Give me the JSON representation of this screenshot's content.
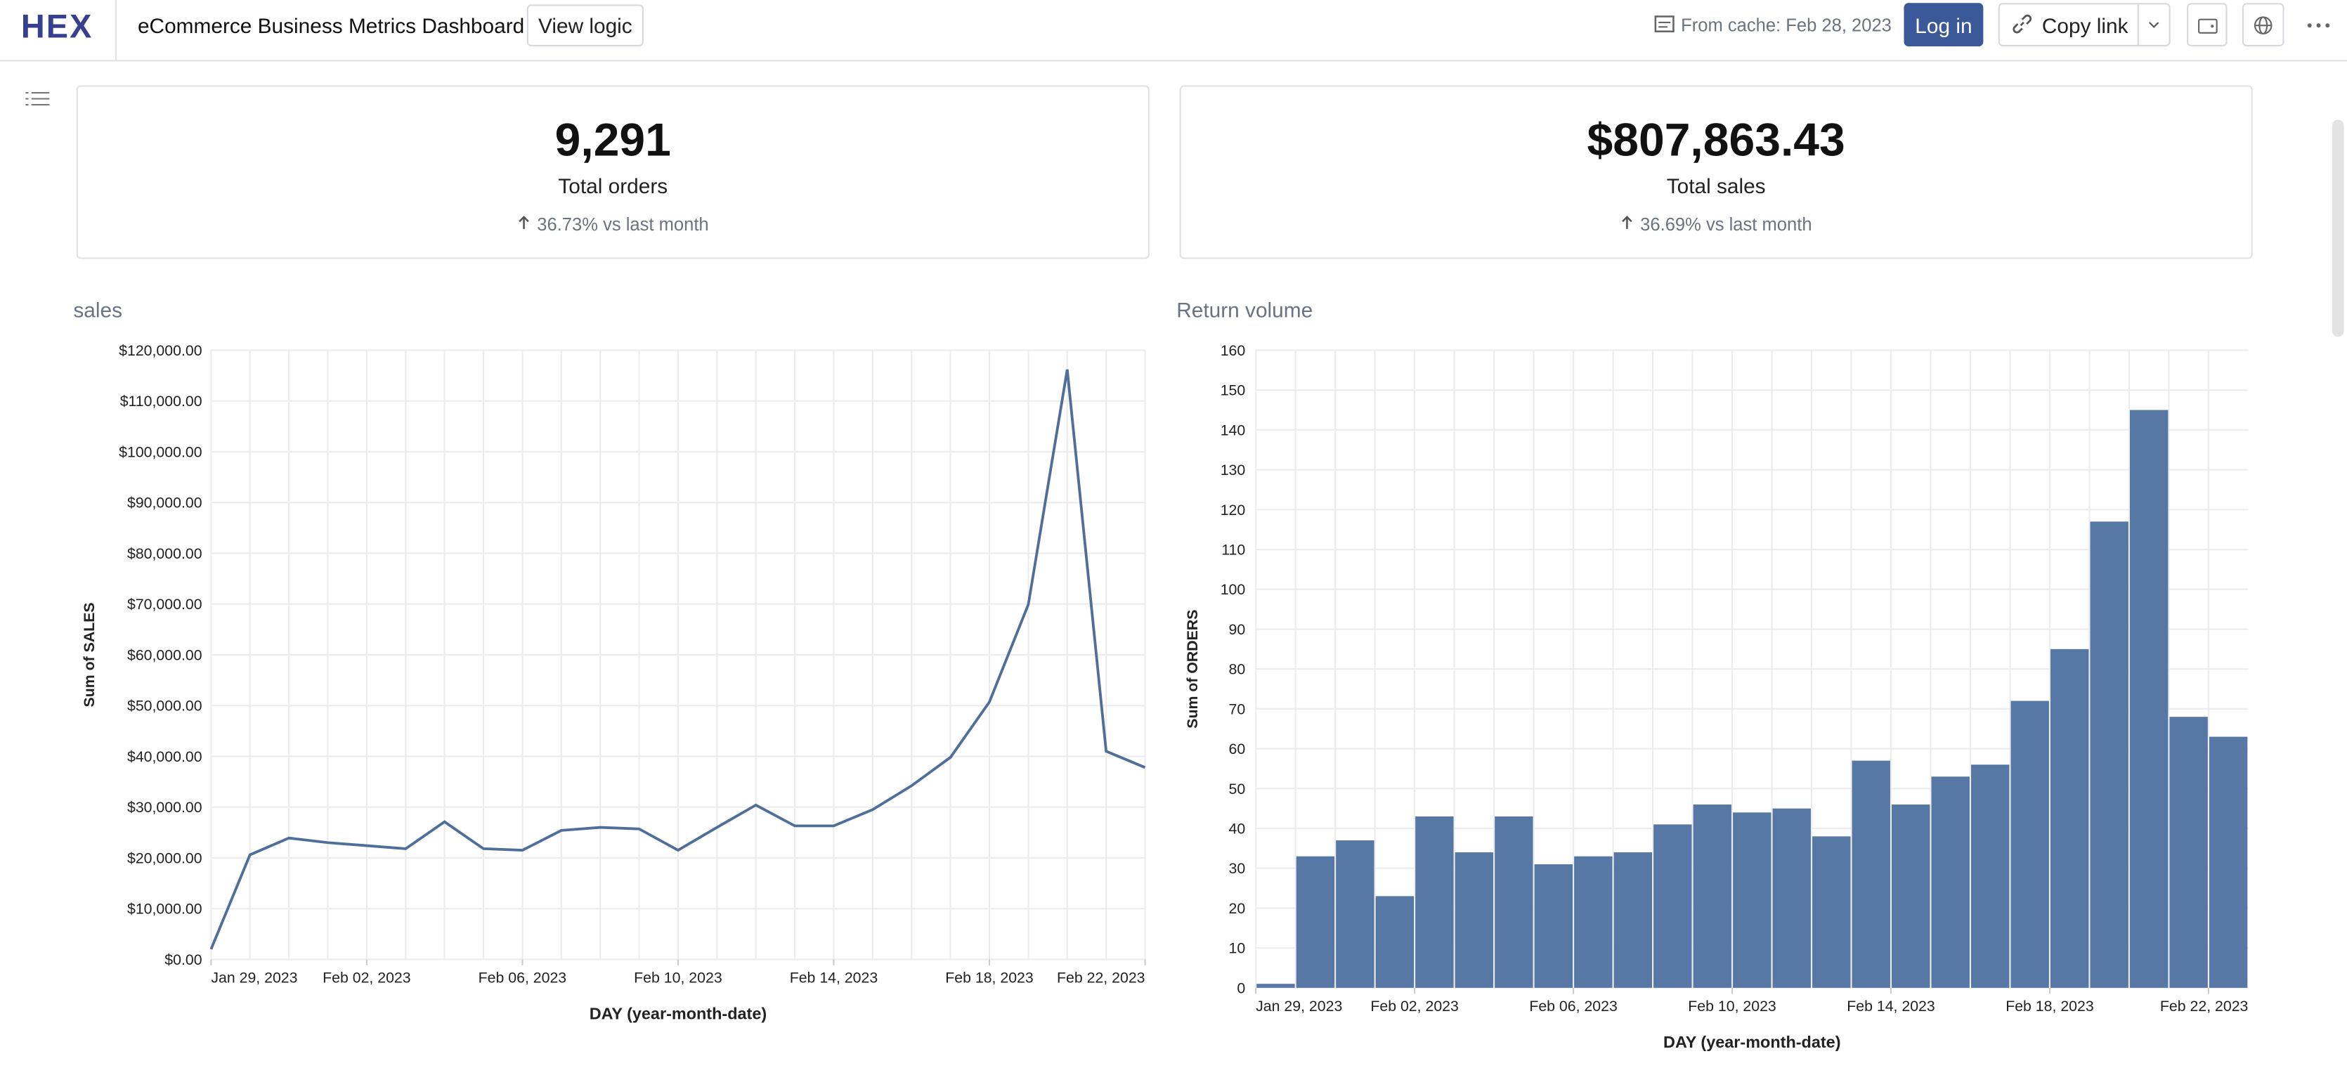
{
  "header": {
    "logo": "HEX",
    "title": "eCommerce Business Metrics Dashboard",
    "view_logic": "View logic",
    "cache": "From cache: Feb 28, 2023",
    "login": "Log in",
    "copy_link": "Copy link"
  },
  "metrics": [
    {
      "value": "9,291",
      "label": "Total orders",
      "change": "36.73% vs last month"
    },
    {
      "value": "$807,863.43",
      "label": "Total sales",
      "change": "36.69% vs last month"
    }
  ],
  "chart_data": [
    {
      "type": "line",
      "title": "sales",
      "x_label": "DAY (year-month-date)",
      "y_label": "Sum of SALES",
      "color": "#4f6f9a",
      "grid": true,
      "x": [
        "2023-01-29",
        "2023-01-30",
        "2023-01-31",
        "2023-02-01",
        "2023-02-02",
        "2023-02-03",
        "2023-02-04",
        "2023-02-05",
        "2023-02-06",
        "2023-02-07",
        "2023-02-08",
        "2023-02-09",
        "2023-02-10",
        "2023-02-11",
        "2023-02-12",
        "2023-02-13",
        "2023-02-14",
        "2023-02-15",
        "2023-02-16",
        "2023-02-17",
        "2023-02-18",
        "2023-02-19",
        "2023-02-20",
        "2023-02-21",
        "2023-02-22"
      ],
      "values": [
        2000,
        20600,
        23900,
        23000,
        22400,
        21800,
        27100,
        21800,
        21500,
        25400,
        26000,
        25700,
        21500,
        26000,
        30400,
        26300,
        26300,
        29500,
        34200,
        39800,
        50700,
        69900,
        116200,
        41000,
        37800
      ],
      "xticks": [
        {
          "value": "2023-01-29",
          "label": "Jan 29, 2023"
        },
        {
          "value": "2023-02-02",
          "label": "Feb 02, 2023"
        },
        {
          "value": "2023-02-06",
          "label": "Feb 06, 2023"
        },
        {
          "value": "2023-02-10",
          "label": "Feb 10, 2023"
        },
        {
          "value": "2023-02-14",
          "label": "Feb 14, 2023"
        },
        {
          "value": "2023-02-18",
          "label": "Feb 18, 2023"
        },
        {
          "value": "2023-02-22",
          "label": "Feb 22, 2023"
        }
      ],
      "ylim": [
        0,
        120000
      ],
      "yticks": [
        {
          "value": 0,
          "label": "$0.00"
        },
        {
          "value": 10000,
          "label": "$10,000.00"
        },
        {
          "value": 20000,
          "label": "$20,000.00"
        },
        {
          "value": 30000,
          "label": "$30,000.00"
        },
        {
          "value": 40000,
          "label": "$40,000.00"
        },
        {
          "value": 50000,
          "label": "$50,000.00"
        },
        {
          "value": 60000,
          "label": "$60,000.00"
        },
        {
          "value": 70000,
          "label": "$70,000.00"
        },
        {
          "value": 80000,
          "label": "$80,000.00"
        },
        {
          "value": 90000,
          "label": "$90,000.00"
        },
        {
          "value": 100000,
          "label": "$100,000.00"
        },
        {
          "value": 110000,
          "label": "$110,000.00"
        },
        {
          "value": 120000,
          "label": "$120,000.00"
        }
      ]
    },
    {
      "type": "bar",
      "title": "Return volume",
      "x_label": "DAY (year-month-date)",
      "y_label": "Sum of ORDERS",
      "color": "#5778a4",
      "grid": true,
      "x": [
        "2023-01-29",
        "2023-01-30",
        "2023-01-31",
        "2023-02-01",
        "2023-02-02",
        "2023-02-03",
        "2023-02-04",
        "2023-02-05",
        "2023-02-06",
        "2023-02-07",
        "2023-02-08",
        "2023-02-09",
        "2023-02-10",
        "2023-02-11",
        "2023-02-12",
        "2023-02-13",
        "2023-02-14",
        "2023-02-15",
        "2023-02-16",
        "2023-02-17",
        "2023-02-18",
        "2023-02-19",
        "2023-02-20",
        "2023-02-21",
        "2023-02-22"
      ],
      "values": [
        1,
        33,
        37,
        23,
        43,
        34,
        43,
        31,
        33,
        34,
        41,
        46,
        44,
        45,
        38,
        57,
        46,
        53,
        56,
        72,
        85,
        117,
        145,
        68,
        63
      ],
      "xticks": [
        {
          "value": "2023-01-29",
          "label": "Jan 29, 2023"
        },
        {
          "value": "2023-02-02",
          "label": "Feb 02, 2023"
        },
        {
          "value": "2023-02-06",
          "label": "Feb 06, 2023"
        },
        {
          "value": "2023-02-10",
          "label": "Feb 10, 2023"
        },
        {
          "value": "2023-02-14",
          "label": "Feb 14, 2023"
        },
        {
          "value": "2023-02-18",
          "label": "Feb 18, 2023"
        },
        {
          "value": "2023-02-22",
          "label": "Feb 22, 2023"
        }
      ],
      "ylim": [
        0,
        160
      ],
      "yticks": [
        0,
        10,
        20,
        30,
        40,
        50,
        60,
        70,
        80,
        90,
        100,
        110,
        120,
        130,
        140,
        150,
        160
      ]
    }
  ]
}
